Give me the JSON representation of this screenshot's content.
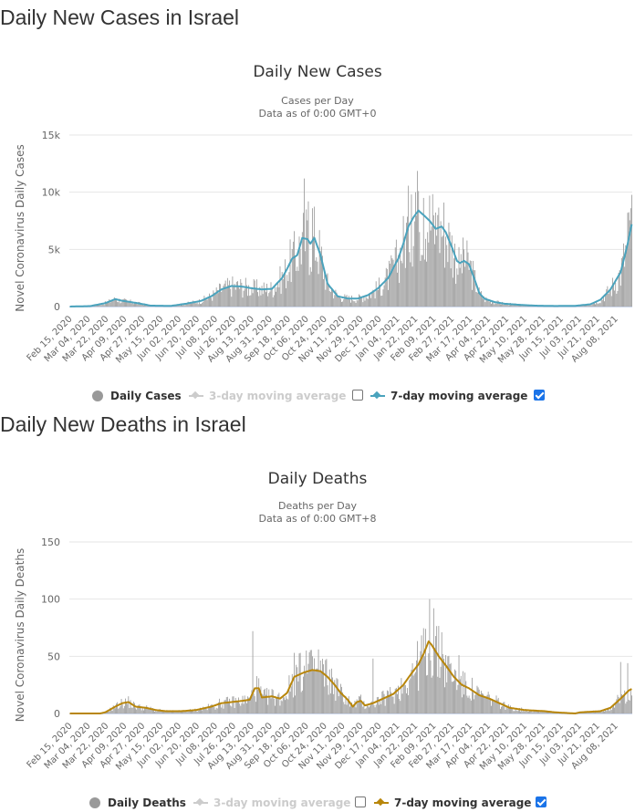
{
  "sections": [
    {
      "heading": "Daily New Cases in Israel",
      "legend": {
        "bars": "Daily Cases",
        "ma3": "3-day moving average",
        "ma3_checked": false,
        "ma7": "7-day moving average",
        "ma7_checked": true
      }
    },
    {
      "heading": "Daily New Deaths in Israel",
      "legend": {
        "bars": "Daily Deaths",
        "ma3": "3-day moving average",
        "ma3_checked": false,
        "ma7": "7-day moving average",
        "ma7_checked": true
      }
    }
  ],
  "colors": {
    "bars": "#999999",
    "cases_line": "#4aa3bd",
    "deaths_line": "#b8860b",
    "grid": "#e6e6e6",
    "checkbox": "#1a73e8"
  },
  "chart_data": [
    {
      "type": "bar",
      "title": "Daily New Cases",
      "subtitle": [
        "Cases per Day",
        "Data as of 0:00 GMT+0"
      ],
      "xlabel": "",
      "ylabel": "Novel Coronavirus Daily Cases",
      "ylim": [
        0,
        15000
      ],
      "yticks": [
        0,
        5000,
        10000,
        15000
      ],
      "ytick_labels": [
        "0",
        "5k",
        "10k",
        "15k"
      ],
      "grid": true,
      "x_start": "2020-02-15",
      "x_end": "2021-08-24",
      "xtick_labels": [
        "Feb 15, 2020",
        "Mar 04, 2020",
        "Mar 22, 2020",
        "Apr 09, 2020",
        "Apr 27, 2020",
        "May 15, 2020",
        "Jun 02, 2020",
        "Jun 20, 2020",
        "Jul 08, 2020",
        "Jul 26, 2020",
        "Aug 13, 2020",
        "Aug 31, 2020",
        "Sep 18, 2020",
        "Oct 06, 2020",
        "Oct 24, 2020",
        "Nov 11, 2020",
        "Nov 29, 2020",
        "Dec 17, 2020",
        "Jan 04, 2021",
        "Jan 22, 2021",
        "Feb 09, 2021",
        "Feb 27, 2021",
        "Mar 17, 2021",
        "Apr 04, 2021",
        "Apr 22, 2021",
        "May 10, 2021",
        "May 28, 2021",
        "Jun 15, 2021",
        "Jul 03, 2021",
        "Jul 21, 2021",
        "Aug 08, 2021"
      ],
      "legend_position": "bottom",
      "series": [
        {
          "name": "7-day moving average",
          "kind": "line",
          "keypoints_day_value": [
            [
              0,
              0
            ],
            [
              20,
              40
            ],
            [
              35,
              300
            ],
            [
              45,
              650
            ],
            [
              52,
              500
            ],
            [
              60,
              400
            ],
            [
              70,
              250
            ],
            [
              80,
              80
            ],
            [
              100,
              60
            ],
            [
              115,
              250
            ],
            [
              130,
              500
            ],
            [
              140,
              900
            ],
            [
              150,
              1500
            ],
            [
              160,
              1800
            ],
            [
              170,
              1750
            ],
            [
              180,
              1600
            ],
            [
              190,
              1500
            ],
            [
              200,
              1550
            ],
            [
              210,
              2500
            ],
            [
              215,
              3300
            ],
            [
              220,
              4200
            ],
            [
              225,
              4500
            ],
            [
              230,
              6000
            ],
            [
              235,
              5900
            ],
            [
              238,
              5500
            ],
            [
              242,
              6000
            ],
            [
              248,
              4500
            ],
            [
              255,
              2000
            ],
            [
              265,
              900
            ],
            [
              275,
              700
            ],
            [
              285,
              700
            ],
            [
              295,
              1000
            ],
            [
              305,
              1600
            ],
            [
              315,
              2500
            ],
            [
              325,
              4200
            ],
            [
              330,
              5500
            ],
            [
              335,
              7000
            ],
            [
              340,
              7800
            ],
            [
              345,
              8400
            ],
            [
              350,
              8000
            ],
            [
              356,
              7500
            ],
            [
              362,
              6800
            ],
            [
              368,
              7000
            ],
            [
              372,
              6500
            ],
            [
              378,
              5200
            ],
            [
              383,
              4000
            ],
            [
              386,
              3800
            ],
            [
              390,
              4000
            ],
            [
              395,
              3700
            ],
            [
              400,
              2500
            ],
            [
              405,
              1200
            ],
            [
              410,
              700
            ],
            [
              420,
              400
            ],
            [
              430,
              250
            ],
            [
              445,
              150
            ],
            [
              460,
              80
            ],
            [
              480,
              50
            ],
            [
              500,
              60
            ],
            [
              515,
              200
            ],
            [
              525,
              600
            ],
            [
              535,
              1500
            ],
            [
              545,
              3000
            ],
            [
              552,
              5500
            ],
            [
              556,
              7200
            ],
            [
              557,
              7500
            ]
          ]
        },
        {
          "name": "Daily Cases",
          "kind": "bar",
          "peaks_day_value": [
            [
              232,
              11200
            ],
            [
              236,
              9200
            ],
            [
              240,
              8600
            ],
            [
              338,
              9800
            ],
            [
              342,
              10000
            ],
            [
              345,
              10100
            ],
            [
              350,
              9500
            ],
            [
              364,
              8000
            ],
            [
              385,
              5200
            ],
            [
              390,
              5000
            ],
            [
              552,
              8200
            ],
            [
              555,
              8600
            ]
          ]
        }
      ]
    },
    {
      "type": "bar",
      "title": "Daily Deaths",
      "subtitle": [
        "Deaths per Day",
        "Data as of 0:00 GMT+8"
      ],
      "xlabel": "",
      "ylabel": "Novel Coronavirus Daily Deaths",
      "ylim": [
        0,
        150
      ],
      "yticks": [
        0,
        50,
        100,
        150
      ],
      "ytick_labels": [
        "0",
        "50",
        "100",
        "150"
      ],
      "grid": true,
      "x_start": "2020-02-15",
      "x_end": "2021-08-24",
      "xtick_labels": [
        "Feb 15, 2020",
        "Mar 04, 2020",
        "Mar 22, 2020",
        "Apr 09, 2020",
        "Apr 27, 2020",
        "May 15, 2020",
        "Jun 02, 2020",
        "Jun 20, 2020",
        "Jul 08, 2020",
        "Jul 26, 2020",
        "Aug 13, 2020",
        "Aug 31, 2020",
        "Sep 18, 2020",
        "Oct 06, 2020",
        "Oct 24, 2020",
        "Nov 11, 2020",
        "Nov 29, 2020",
        "Dec 17, 2020",
        "Jan 04, 2021",
        "Jan 22, 2021",
        "Feb 09, 2021",
        "Feb 27, 2021",
        "Mar 17, 2021",
        "Apr 04, 2021",
        "Apr 22, 2021",
        "May 10, 2021",
        "May 28, 2021",
        "Jun 15, 2021",
        "Jul 03, 2021",
        "Jul 21, 2021",
        "Aug 08, 2021"
      ],
      "legend_position": "bottom",
      "series": [
        {
          "name": "7-day moving average",
          "kind": "line",
          "keypoints_day_value": [
            [
              0,
              0
            ],
            [
              30,
              0
            ],
            [
              35,
              1
            ],
            [
              45,
              6
            ],
            [
              52,
              9
            ],
            [
              58,
              10
            ],
            [
              65,
              6
            ],
            [
              75,
              5
            ],
            [
              85,
              3
            ],
            [
              95,
              2
            ],
            [
              110,
              2
            ],
            [
              125,
              3
            ],
            [
              140,
              6
            ],
            [
              150,
              9
            ],
            [
              160,
              10
            ],
            [
              170,
              11
            ],
            [
              178,
              12
            ],
            [
              183,
              22
            ],
            [
              187,
              22
            ],
            [
              190,
              14
            ],
            [
              200,
              15
            ],
            [
              208,
              13
            ],
            [
              215,
              18
            ],
            [
              222,
              32
            ],
            [
              232,
              36
            ],
            [
              240,
              38
            ],
            [
              248,
              37
            ],
            [
              255,
              32
            ],
            [
              262,
              25
            ],
            [
              268,
              18
            ],
            [
              275,
              12
            ],
            [
              280,
              6
            ],
            [
              284,
              10
            ],
            [
              288,
              11
            ],
            [
              292,
              7
            ],
            [
              300,
              9
            ],
            [
              310,
              13
            ],
            [
              320,
              17
            ],
            [
              330,
              25
            ],
            [
              338,
              35
            ],
            [
              345,
              43
            ],
            [
              350,
              52
            ],
            [
              355,
              63
            ],
            [
              358,
              60
            ],
            [
              365,
              50
            ],
            [
              372,
              42
            ],
            [
              380,
              32
            ],
            [
              388,
              25
            ],
            [
              395,
              22
            ],
            [
              405,
              16
            ],
            [
              415,
              13
            ],
            [
              425,
              9
            ],
            [
              435,
              5
            ],
            [
              450,
              3
            ],
            [
              470,
              2
            ],
            [
              480,
              1
            ],
            [
              500,
              0
            ],
            [
              505,
              1
            ],
            [
              525,
              2
            ],
            [
              535,
              5
            ],
            [
              545,
              13
            ],
            [
              553,
              20
            ],
            [
              557,
              22
            ]
          ]
        },
        {
          "name": "Daily Deaths",
          "kind": "bar",
          "peaks_day_value": [
            [
              181,
              72
            ],
            [
              222,
              53
            ],
            [
              228,
              53
            ],
            [
              234,
              55
            ],
            [
              240,
              50
            ],
            [
              246,
              56
            ],
            [
              300,
              48
            ],
            [
              352,
              74
            ],
            [
              356,
              100
            ],
            [
              360,
              92
            ],
            [
              368,
              71
            ],
            [
              385,
              51
            ],
            [
              545,
              45
            ],
            [
              552,
              44
            ]
          ]
        }
      ]
    }
  ]
}
